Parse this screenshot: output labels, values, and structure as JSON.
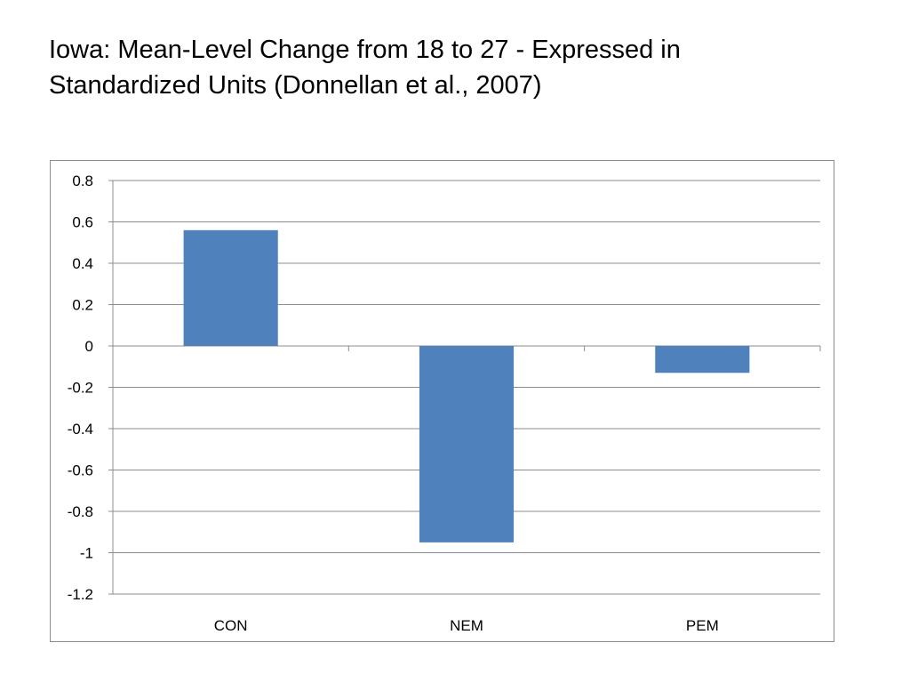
{
  "slide": {
    "title_line1": "Iowa: Mean-Level Change from 18 to 27 - Expressed in",
    "title_line2": "Standardized Units (Donnellan et al., 2007)"
  },
  "chart_data": {
    "type": "bar",
    "categories": [
      "CON",
      "NEM",
      "PEM"
    ],
    "series": [
      {
        "values": [
          0.56,
          -0.95,
          -0.13
        ],
        "color": "#4f81bd"
      }
    ],
    "ylim": [
      -1.2,
      0.8
    ],
    "y_ticks": [
      0.8,
      0.6,
      0.4,
      0.2,
      0,
      -0.2,
      -0.4,
      -0.6,
      -0.8,
      -1,
      -1.2
    ],
    "y_tick_labels": [
      "0.8",
      "0.6",
      "0.4",
      "0.2",
      "0",
      "-0.2",
      "-0.4",
      "-0.6",
      "-0.8",
      "-1",
      "-1.2"
    ],
    "grid": true,
    "legend": "none",
    "xlabel": "",
    "ylabel": ""
  }
}
